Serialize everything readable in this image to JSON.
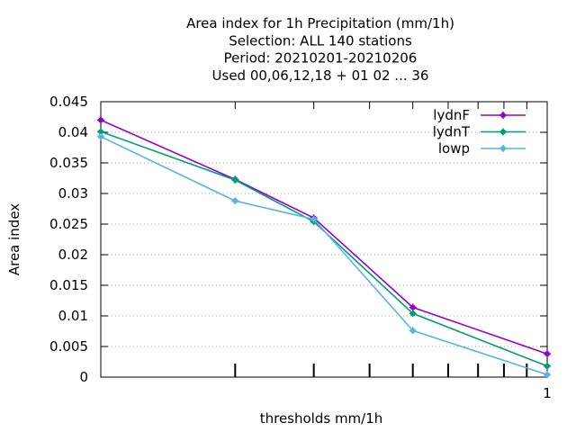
{
  "chart_data": {
    "type": "line",
    "title_lines": [
      "Area index  for 1h Precipitation (mm/1h)",
      "Selection: ALL    140 stations",
      "Period: 20210201-20210206",
      "Used  00,06,12,18 + 01 02 ... 36"
    ],
    "xlabel": "thresholds mm/1h",
    "ylabel": "Area index",
    "x_scale": "log",
    "xlim": [
      0.1,
      1
    ],
    "ylim": [
      0,
      0.045
    ],
    "x_tick_labels": [
      "1"
    ],
    "y_ticks": [
      0,
      0.005,
      0.01,
      0.015,
      0.02,
      0.025,
      0.03,
      0.035,
      0.04,
      0.045
    ],
    "y_tick_labels": [
      "0",
      "0.005",
      "0.01",
      "0.015",
      "0.02",
      "0.025",
      "0.03",
      "0.035",
      "0.04",
      "0.045"
    ],
    "grid": "horizontal dotted",
    "legend_position": "top-right",
    "x": [
      0.1,
      0.2,
      0.3,
      0.5,
      1.0
    ],
    "series": [
      {
        "name": "lydnF",
        "color": "#9400d3",
        "values": [
          0.042,
          0.0323,
          0.026,
          0.0114,
          0.0038
        ]
      },
      {
        "name": "lydnT",
        "color": "#009e73",
        "values": [
          0.0401,
          0.0322,
          0.0254,
          0.0104,
          0.0018
        ]
      },
      {
        "name": "lowp",
        "color": "#56b4e9",
        "values": [
          0.0393,
          0.0288,
          0.0258,
          0.0076,
          0.0004
        ]
      }
    ]
  }
}
